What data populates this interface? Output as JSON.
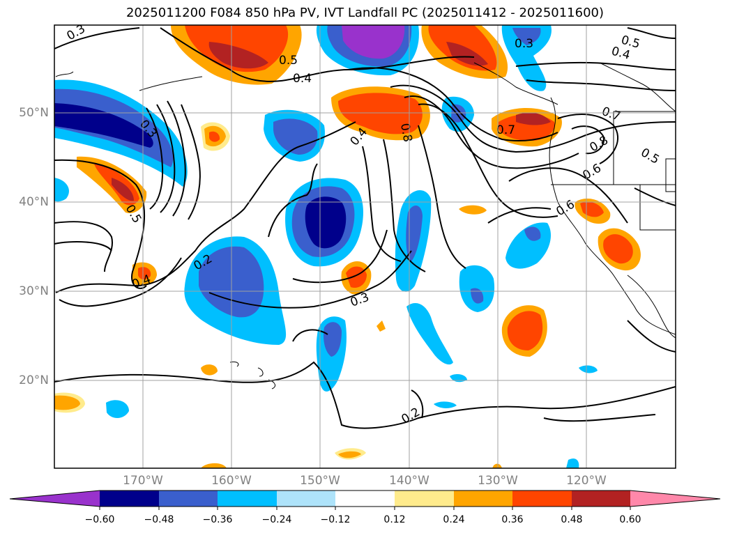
{
  "title": "2025011200 F084 850 hPa PV, IVT Landfall PC (2025011412 - 2025011600)",
  "map": {
    "lat_labels": [
      "50°N",
      "40°N",
      "30°N",
      "20°N"
    ],
    "lon_labels": [
      "170°W",
      "160°W",
      "150°W",
      "140°W",
      "130°W",
      "120°W"
    ],
    "contour_labels": [
      "0.3",
      "0.5",
      "0.4",
      "0.3",
      "0.5",
      "0.4",
      "0.3",
      "0.7",
      "0.7",
      "0.8",
      "0.6",
      "0.5",
      "0.4",
      "0.8",
      "0.5",
      "0.6",
      "0.2",
      "0.4",
      "0.3",
      "0.2"
    ]
  },
  "colorbar": {
    "ticks": [
      "−0.60",
      "−0.48",
      "−0.36",
      "−0.24",
      "−0.12",
      "0.12",
      "0.24",
      "0.36",
      "0.48",
      "0.60"
    ],
    "colors": [
      "#9932cc",
      "#00008b",
      "#3a5fcd",
      "#00bfff",
      "#aee3fa",
      "#ffffff",
      "#ffeb8c",
      "#ffa500",
      "#ff4500",
      "#b22222",
      "#ff88aa"
    ]
  }
}
